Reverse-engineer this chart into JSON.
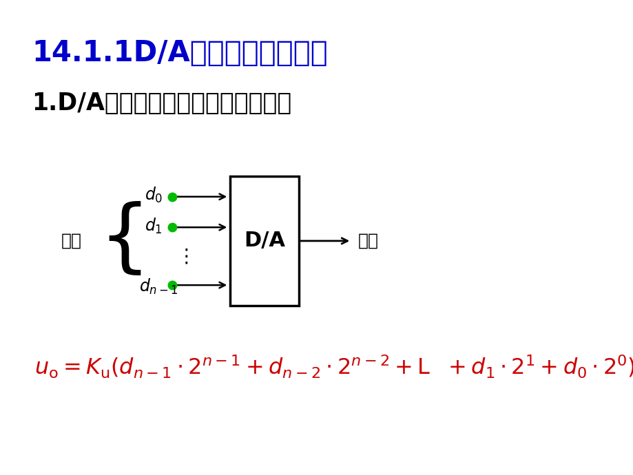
{
  "title": "14.1.1D/A转换器的基本原理",
  "subtitle": "1.D/A转换器的基本原理和转换特性",
  "title_color": "#0000CC",
  "subtitle_color": "#000000",
  "title_fontsize": 30,
  "subtitle_fontsize": 25,
  "bg_color": "#FFFFFF",
  "input_label": "输入",
  "output_label": "输出",
  "formula_color": "#CC0000",
  "dot_color": "#00BB00",
  "arrow_color": "#000000",
  "box_color": "#FFFFFF",
  "box_edge_color": "#000000"
}
